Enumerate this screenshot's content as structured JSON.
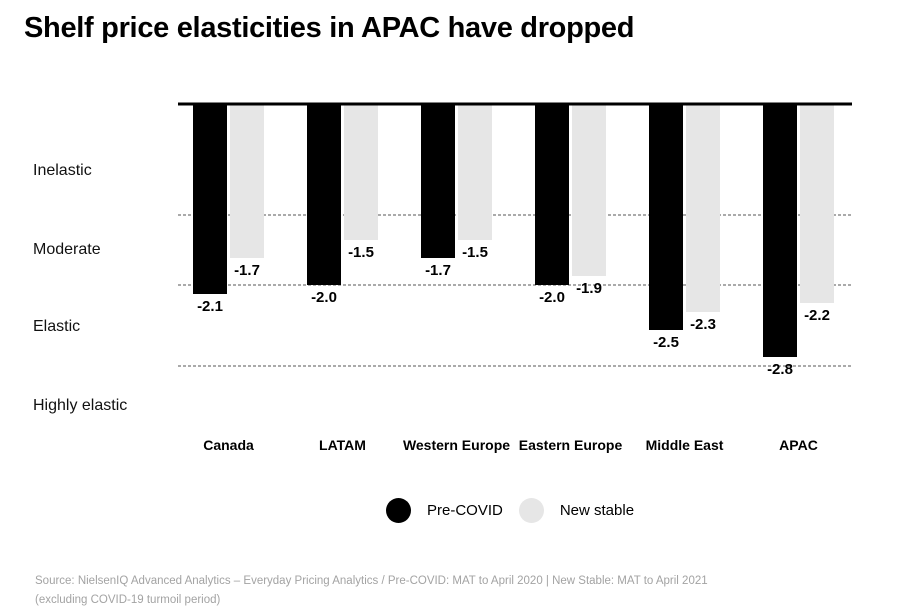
{
  "title": "Shelf price elasticities in APAC have dropped",
  "bands": [
    "Inelastic",
    "Moderate",
    "Elastic",
    "Highly elastic"
  ],
  "legend": {
    "pre": "Pre-COVID",
    "new": "New stable"
  },
  "source": {
    "line1": "Source: NielsenIQ Advanced Analytics – Everyday Pricing Analytics / Pre-COVID: MAT to April 2020 | New Stable: MAT to April 2021",
    "line2": "(excluding COVID-19 turmoil period)"
  },
  "colors": {
    "pre": "#000000",
    "new": "#e6e6e6"
  },
  "chart_data": {
    "type": "bar",
    "categories": [
      "Canada",
      "LATAM",
      "Western Europe",
      "Eastern Europe",
      "Middle East",
      "APAC"
    ],
    "series": [
      {
        "name": "Pre-COVID",
        "values": [
          -2.1,
          -2.0,
          -1.7,
          -2.0,
          -2.5,
          -2.8
        ]
      },
      {
        "name": "New stable",
        "values": [
          -1.7,
          -1.5,
          -1.5,
          -1.9,
          -2.3,
          -2.2
        ]
      }
    ],
    "value_labels": [
      [
        "-2.1",
        "-2.0",
        "-1.7",
        "-2.0",
        "-2.5",
        "-2.8"
      ],
      [
        "-1.7",
        "-1.5",
        "-1.5",
        "-1.9",
        "-2.3",
        "-2.2"
      ]
    ],
    "band_boundaries": [
      -1.2,
      -2.0,
      -2.9
    ],
    "ylim": [
      0,
      -3.3
    ],
    "grid": false,
    "legend_position": "bottom-center"
  }
}
